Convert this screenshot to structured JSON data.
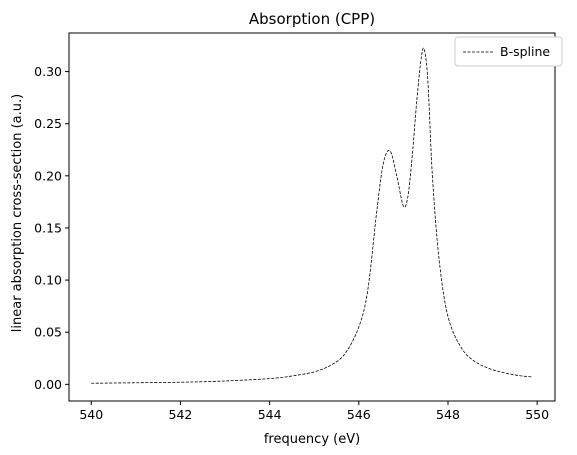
{
  "chart_data": {
    "type": "line",
    "title": "Absorption (CPP)",
    "xlabel": "frequency (eV)",
    "ylabel": "linear absorption cross-section (a.u.)",
    "xlim": [
      539.5,
      550.4
    ],
    "ylim": [
      -0.016,
      0.337
    ],
    "xticks": [
      540,
      542,
      544,
      546,
      548,
      550
    ],
    "yticks": [
      0.0,
      0.05,
      0.1,
      0.15,
      0.2,
      0.25,
      0.3
    ],
    "ytick_labels": [
      "0.00",
      "0.05",
      "0.10",
      "0.15",
      "0.20",
      "0.25",
      "0.30"
    ],
    "grid": false,
    "legend_position": "top-right",
    "series": [
      {
        "name": "B-spline",
        "color": "#000000",
        "line_style": "dashed",
        "x": [
          540.0,
          541.0,
          542.0,
          543.0,
          544.0,
          544.5,
          545.0,
          545.4,
          545.7,
          546.0,
          546.2,
          546.4,
          546.55,
          546.7,
          546.85,
          547.0,
          547.1,
          547.2,
          547.3,
          547.4,
          547.47,
          547.55,
          547.65,
          547.8,
          548.0,
          548.3,
          548.6,
          549.0,
          549.5,
          549.9
        ],
        "y": [
          0.001,
          0.0015,
          0.002,
          0.0032,
          0.0055,
          0.008,
          0.012,
          0.019,
          0.03,
          0.055,
          0.09,
          0.165,
          0.212,
          0.224,
          0.2,
          0.171,
          0.18,
          0.22,
          0.272,
          0.313,
          0.321,
          0.29,
          0.2,
          0.12,
          0.065,
          0.035,
          0.022,
          0.014,
          0.009,
          0.007
        ]
      }
    ]
  }
}
